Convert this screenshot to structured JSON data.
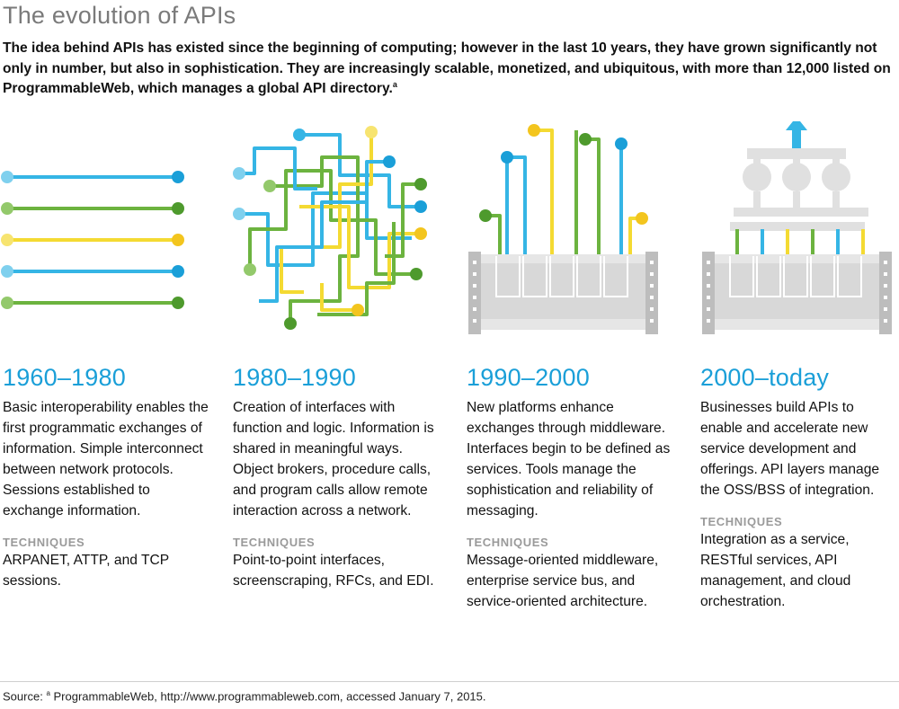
{
  "title": "The evolution of APIs",
  "intro": "The idea behind APIs has existed since the beginning of computing; however in the last 10 years, they have grown significantly not only in number, but also in sophistication. They are increasingly scalable, monetized, and ubiquitous, with more than 12,000 listed on ProgrammableWeb, which manages a global API directory.",
  "intro_note": "a",
  "colors": {
    "accent_blue": "#1a9fd8",
    "cyan": "#35b5e5",
    "green": "#6cb33f",
    "yellow": "#f4da32",
    "gray": "#dedede"
  },
  "eras": [
    {
      "period": "1960–1980",
      "description": "Basic interoperability enables the first programmatic exchanges of information. Simple interconnect between network protocols. Sessions established to exchange information.",
      "techniques_label": "TECHNIQUES",
      "techniques": "ARPANET, ATTP, and TCP sessions."
    },
    {
      "period": "1980–1990",
      "description": "Creation of interfaces with function and logic. Information is shared in meaningful ways. Object brokers, procedure calls, and program calls allow remote interaction across a network.",
      "techniques_label": "TECHNIQUES",
      "techniques": "Point-to-point interfaces, screenscraping, RFCs, and EDI."
    },
    {
      "period": "1990–2000",
      "description": "New platforms enhance exchanges through middleware. Interfaces begin to be defined as services. Tools manage the sophistication and reliability of messaging.",
      "techniques_label": "TECHNIQUES",
      "techniques": "Message-oriented middleware, enterprise service bus, and service-oriented architecture."
    },
    {
      "period": "2000–today",
      "description": "Businesses build APIs to enable and accelerate new service development and offerings. API layers manage the OSS/BSS of integration.",
      "techniques_label": "TECHNIQUES",
      "techniques": "Integration as a service, RESTful services, API management, and cloud orchestration."
    }
  ],
  "source_label": "Source:",
  "source_note": "a",
  "source_text": "ProgrammableWeb, http://www.programmableweb.com, accessed January 7, 2015."
}
